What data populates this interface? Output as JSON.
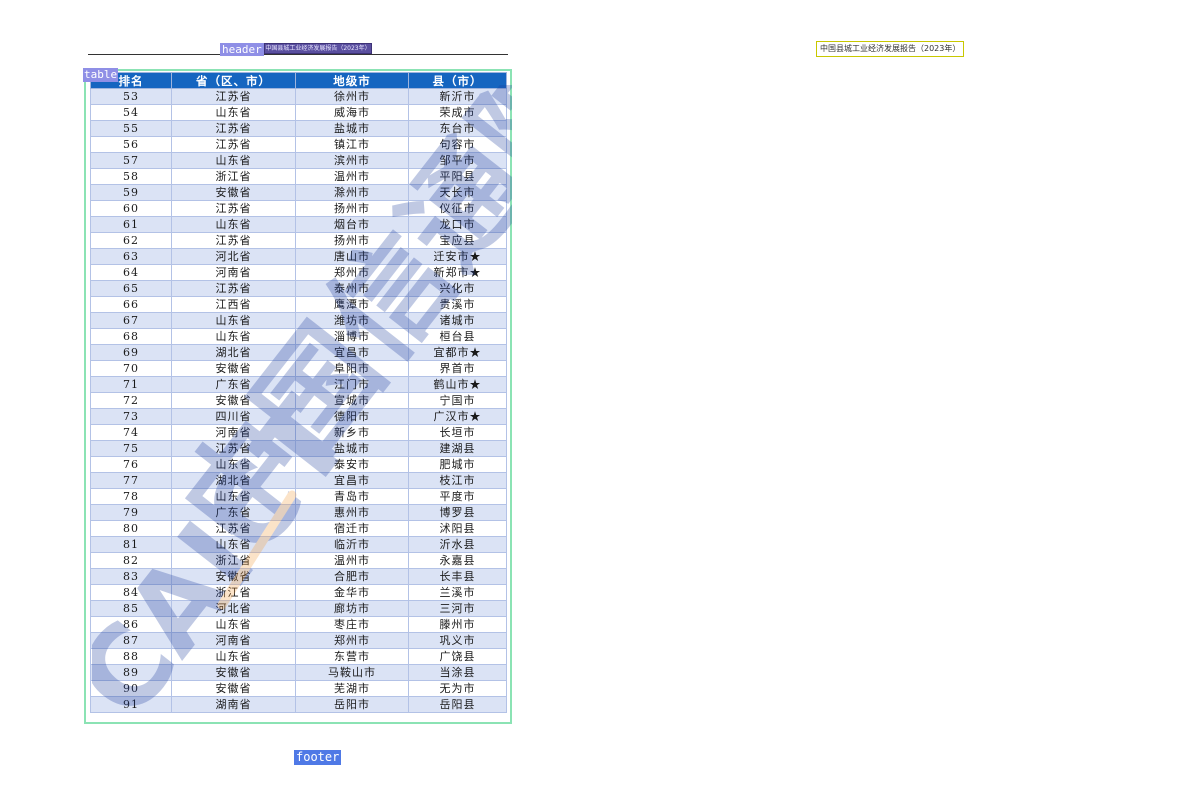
{
  "annotations": {
    "header_tag": "header",
    "table_tag": "table",
    "footer_tag": "footer"
  },
  "header": {
    "report_title": "中国县城工业经济发展报告（2023年）"
  },
  "table": {
    "columns": [
      "排名",
      "省（区、市）",
      "地级市",
      "县（市）"
    ],
    "rows": [
      [
        "53",
        "江苏省",
        "徐州市",
        "新沂市"
      ],
      [
        "54",
        "山东省",
        "威海市",
        "荣成市"
      ],
      [
        "55",
        "江苏省",
        "盐城市",
        "东台市"
      ],
      [
        "56",
        "江苏省",
        "镇江市",
        "句容市"
      ],
      [
        "57",
        "山东省",
        "滨州市",
        "邹平市"
      ],
      [
        "58",
        "浙江省",
        "温州市",
        "平阳县"
      ],
      [
        "59",
        "安徽省",
        "滁州市",
        "天长市"
      ],
      [
        "60",
        "江苏省",
        "扬州市",
        "仪征市"
      ],
      [
        "61",
        "山东省",
        "烟台市",
        "龙口市"
      ],
      [
        "62",
        "江苏省",
        "扬州市",
        "宝应县"
      ],
      [
        "63",
        "河北省",
        "唐山市",
        "迁安市★"
      ],
      [
        "64",
        "河南省",
        "郑州市",
        "新郑市★"
      ],
      [
        "65",
        "江苏省",
        "泰州市",
        "兴化市"
      ],
      [
        "66",
        "江西省",
        "鹰潭市",
        "贵溪市"
      ],
      [
        "67",
        "山东省",
        "潍坊市",
        "诸城市"
      ],
      [
        "68",
        "山东省",
        "淄博市",
        "桓台县"
      ],
      [
        "69",
        "湖北省",
        "宜昌市",
        "宜都市★"
      ],
      [
        "70",
        "安徽省",
        "阜阳市",
        "界首市"
      ],
      [
        "71",
        "广东省",
        "江门市",
        "鹤山市★"
      ],
      [
        "72",
        "安徽省",
        "宣城市",
        "宁国市"
      ],
      [
        "73",
        "四川省",
        "德阳市",
        "广汉市★"
      ],
      [
        "74",
        "河南省",
        "新乡市",
        "长垣市"
      ],
      [
        "75",
        "江苏省",
        "盐城市",
        "建湖县"
      ],
      [
        "76",
        "山东省",
        "泰安市",
        "肥城市"
      ],
      [
        "77",
        "湖北省",
        "宜昌市",
        "枝江市"
      ],
      [
        "78",
        "山东省",
        "青岛市",
        "平度市"
      ],
      [
        "79",
        "广东省",
        "惠州市",
        "博罗县"
      ],
      [
        "80",
        "江苏省",
        "宿迁市",
        "沭阳县"
      ],
      [
        "81",
        "山东省",
        "临沂市",
        "沂水县"
      ],
      [
        "82",
        "浙江省",
        "温州市",
        "永嘉县"
      ],
      [
        "83",
        "安徽省",
        "合肥市",
        "长丰县"
      ],
      [
        "84",
        "浙江省",
        "金华市",
        "兰溪市"
      ],
      [
        "85",
        "河北省",
        "廊坊市",
        "三河市"
      ],
      [
        "86",
        "山东省",
        "枣庄市",
        "滕州市"
      ],
      [
        "87",
        "河南省",
        "郑州市",
        "巩义市"
      ],
      [
        "88",
        "山东省",
        "东营市",
        "广饶县"
      ],
      [
        "89",
        "安徽省",
        "马鞍山市",
        "当涂县"
      ],
      [
        "90",
        "安徽省",
        "芜湖市",
        "无为市"
      ],
      [
        "91",
        "湖南省",
        "岳阳市",
        "岳阳县"
      ]
    ]
  },
  "watermark": {
    "latin": "CAICT",
    "chinese": "中国信通院"
  },
  "colors": {
    "table_header": "#1565c0",
    "row_stripe": "#dbe3f5",
    "table_frame": "#8be3b4",
    "annotation_tag": "#8f8fe6",
    "footer_tag": "#4f79e6"
  }
}
